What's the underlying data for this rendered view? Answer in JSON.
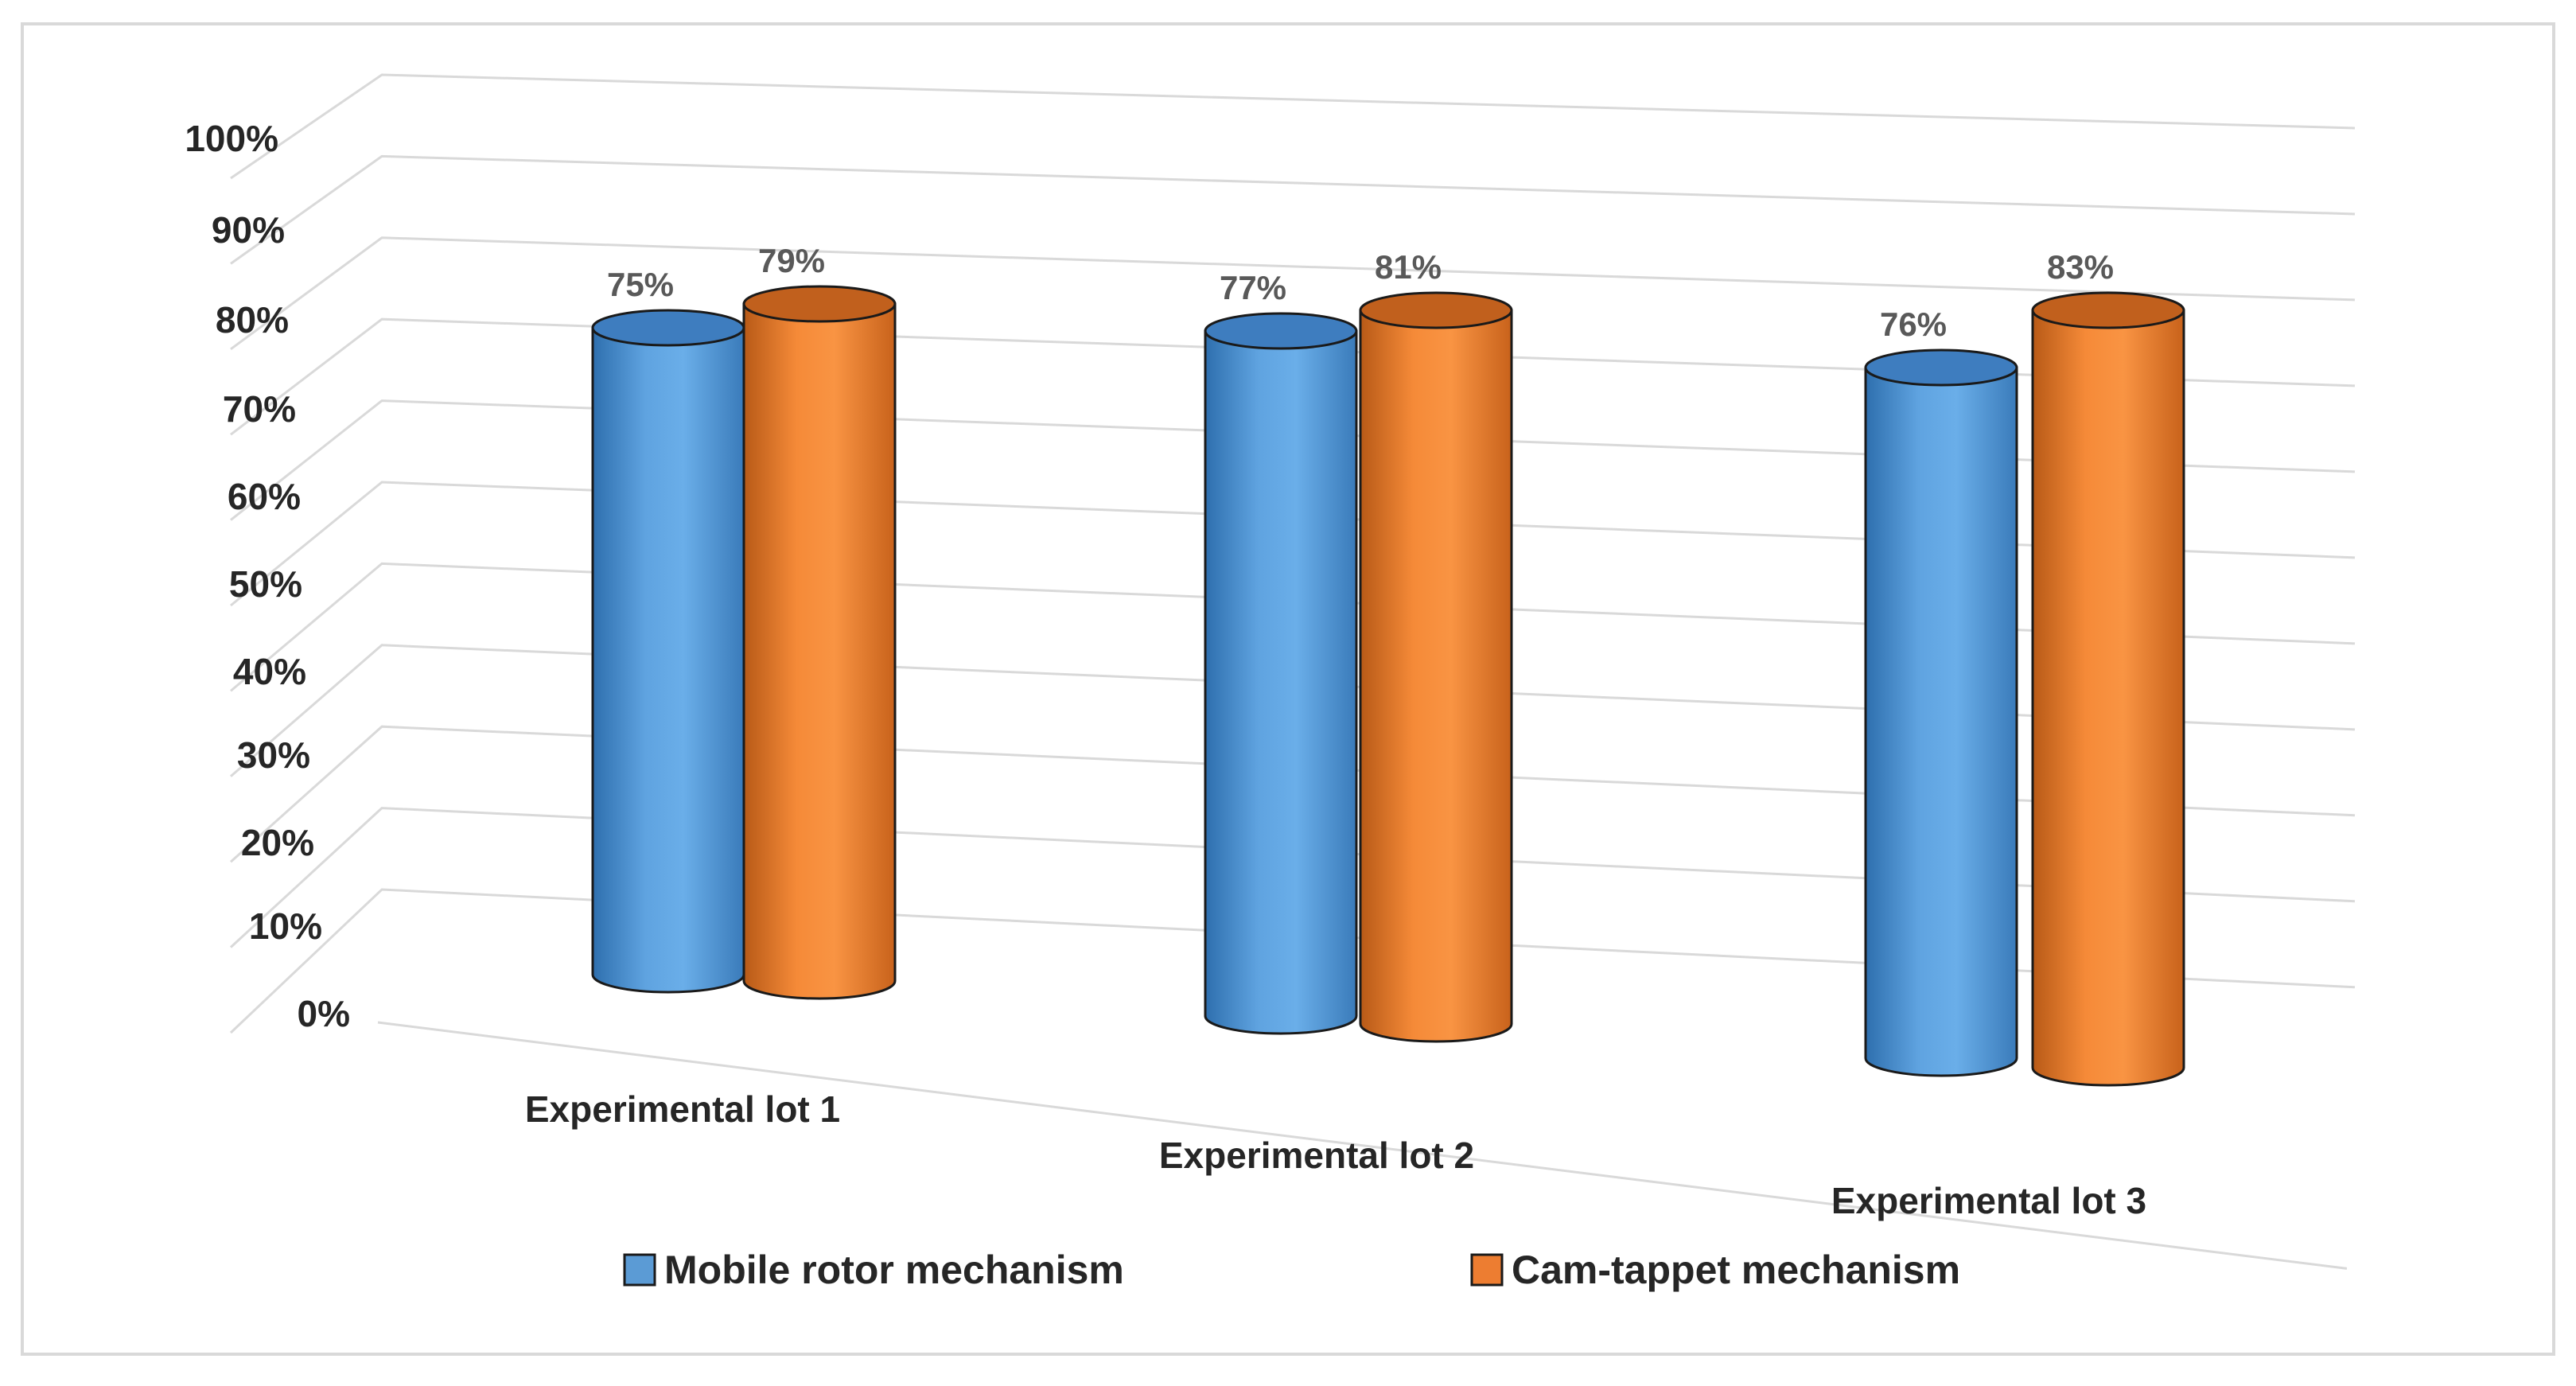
{
  "chart_data": {
    "type": "bar",
    "style": "3d-cylinder",
    "title": "",
    "xlabel": "",
    "ylabel": "",
    "ylim": [
      0,
      100
    ],
    "y_tick_format": "percent",
    "y_ticks": [
      "0%",
      "10%",
      "20%",
      "30%",
      "40%",
      "50%",
      "60%",
      "70%",
      "80%",
      "90%",
      "100%"
    ],
    "categories": [
      "Experimental lot 1",
      "Experimental lot 2",
      "Experimental lot 3"
    ],
    "series": [
      {
        "name": "Mobile rotor mechanism",
        "values": [
          75,
          77,
          76
        ],
        "labels": [
          "75%",
          "77%",
          "76%"
        ],
        "color": "#5B9BD5"
      },
      {
        "name": "Cam-tappet mechanism",
        "values": [
          79,
          81,
          83
        ],
        "labels": [
          "79%",
          "81%",
          "83%"
        ],
        "color": "#ED7D31"
      }
    ],
    "grid": true,
    "legend_position": "bottom"
  }
}
